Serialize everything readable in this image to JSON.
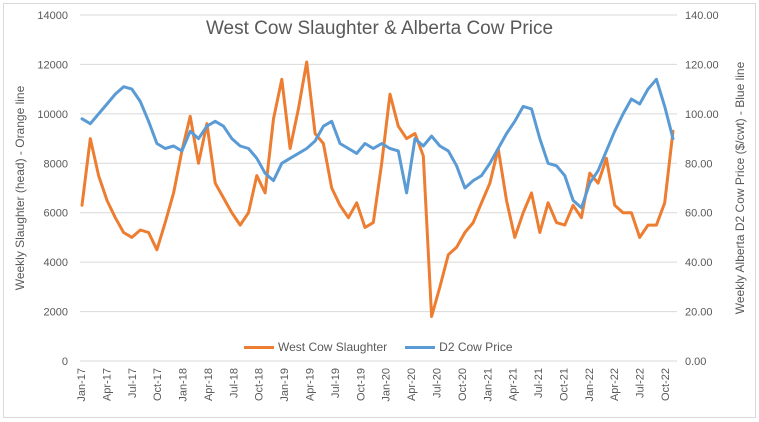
{
  "chart_data": {
    "type": "line",
    "title": "West Cow Slaughter & Alberta Cow Price",
    "xlabel": "",
    "ylabel": "Weekly Slaughter (head) - Orange line",
    "y2label": "Weekly Alberta D2 Cow Price ($/cwt) - Blue line",
    "ylim": [
      0,
      14000
    ],
    "y2lim": [
      0,
      140
    ],
    "y_ticks": [
      "0",
      "2000",
      "4000",
      "6000",
      "8000",
      "10000",
      "12000",
      "14000"
    ],
    "y2_ticks": [
      "0.00",
      "20.00",
      "40.00",
      "60.00",
      "80.00",
      "100.00",
      "120.00",
      "140.00"
    ],
    "x_ticks": [
      "Jan-17",
      "Apr-17",
      "Jul-17",
      "Oct-17",
      "Jan-18",
      "Apr-18",
      "Jul-18",
      "Oct-18",
      "Jan-19",
      "Apr-19",
      "Jul-19",
      "Oct-19",
      "Jan-20",
      "Apr-20",
      "Jul-20",
      "Oct-20",
      "Jan-21",
      "Apr-21",
      "Jul-21",
      "Oct-21",
      "Jan-22",
      "Apr-22",
      "Jul-22",
      "Oct-22"
    ],
    "grid": true,
    "legend_position": "bottom-inside",
    "x": [
      "Jan-17",
      "Feb-17",
      "Mar-17",
      "Apr-17",
      "May-17",
      "Jun-17",
      "Jul-17",
      "Aug-17",
      "Sep-17",
      "Oct-17",
      "Nov-17",
      "Dec-17",
      "Jan-18",
      "Feb-18",
      "Mar-18",
      "Apr-18",
      "May-18",
      "Jun-18",
      "Jul-18",
      "Aug-18",
      "Sep-18",
      "Oct-18",
      "Nov-18",
      "Dec-18",
      "Jan-19",
      "Feb-19",
      "Mar-19",
      "Apr-19",
      "May-19",
      "Jun-19",
      "Jul-19",
      "Aug-19",
      "Sep-19",
      "Oct-19",
      "Nov-19",
      "Dec-19",
      "Jan-20",
      "Feb-20",
      "Mar-20",
      "Apr-20",
      "May-20",
      "Jun-20",
      "Jul-20",
      "Aug-20",
      "Sep-20",
      "Oct-20",
      "Nov-20",
      "Dec-20",
      "Jan-21",
      "Feb-21",
      "Mar-21",
      "Apr-21",
      "May-21",
      "Jun-21",
      "Jul-21",
      "Aug-21",
      "Sep-21",
      "Oct-21",
      "Nov-21",
      "Dec-21",
      "Jan-22",
      "Feb-22",
      "Mar-22",
      "Apr-22",
      "May-22",
      "Jun-22",
      "Jul-22",
      "Aug-22",
      "Sep-22",
      "Oct-22",
      "Nov-22",
      "Dec-22"
    ],
    "series": [
      {
        "name": "West Cow Slaughter",
        "axis": "left",
        "color": "#ed7d31",
        "values": [
          6300,
          9000,
          7500,
          6500,
          5800,
          5200,
          5000,
          5300,
          5200,
          4500,
          5600,
          6800,
          8500,
          9900,
          8000,
          9600,
          7200,
          6600,
          6000,
          5500,
          6000,
          7500,
          6800,
          9800,
          11400,
          8600,
          10200,
          12100,
          9200,
          8800,
          7000,
          6300,
          5800,
          6400,
          5400,
          5600,
          8000,
          10800,
          9500,
          9000,
          9200,
          8300,
          1800,
          3000,
          4300,
          4600,
          5200,
          5600,
          6400,
          7200,
          8600,
          6500,
          5000,
          6000,
          6800,
          5200,
          6400,
          5600,
          5500,
          6300,
          5800,
          7600,
          7200,
          8200,
          6300,
          6000,
          6000,
          5000,
          5500,
          5500,
          6400,
          9300
        ]
      },
      {
        "name": "D2 Cow Price",
        "axis": "right",
        "color": "#5b9bd5",
        "values": [
          98,
          96,
          100,
          104,
          108,
          111,
          110,
          105,
          97,
          88,
          86,
          87,
          85,
          93,
          90,
          95,
          97,
          95,
          90,
          87,
          86,
          82,
          76,
          73,
          80,
          82,
          84,
          86,
          89,
          95,
          97,
          88,
          86,
          84,
          88,
          86,
          88,
          86,
          85,
          68,
          90,
          87,
          91,
          87,
          85,
          79,
          70,
          73,
          75,
          80,
          86,
          92,
          97,
          103,
          102,
          90,
          80,
          79,
          75,
          65,
          62,
          72,
          77,
          85,
          93,
          100,
          106,
          104,
          110,
          114,
          103,
          90
        ]
      }
    ]
  },
  "legend": {
    "items": [
      {
        "label": "West Cow Slaughter",
        "color": "#ed7d31"
      },
      {
        "label": "D2 Cow Price",
        "color": "#5b9bd5"
      }
    ]
  }
}
